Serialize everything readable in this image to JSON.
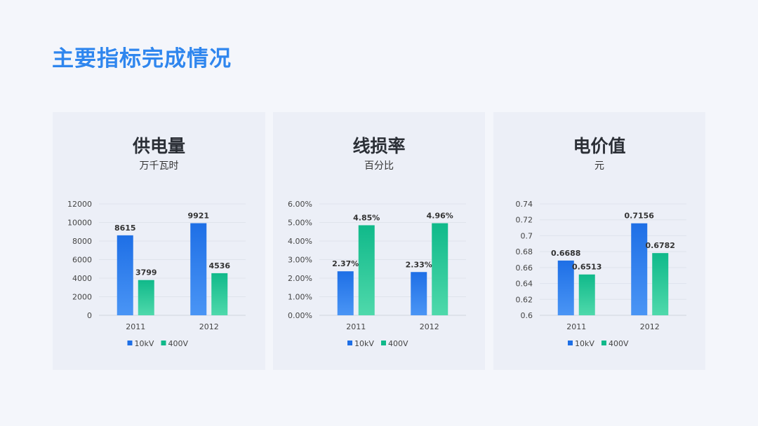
{
  "page_title": "主要指标完成情况",
  "colors": {
    "title": "#2f86ee",
    "series_10kV": [
      "#1e6fe6",
      "#4a95f5"
    ],
    "series_400V": [
      "#10b98a",
      "#4fd9ab"
    ],
    "card_bg": "#eceff7"
  },
  "chart_data": [
    {
      "type": "bar",
      "title": "供电量",
      "subtitle": "万千瓦时",
      "categories": [
        "2011",
        "2012"
      ],
      "series": [
        {
          "name": "10kV",
          "values": [
            8615,
            9921
          ],
          "labels": [
            "8615",
            "9921"
          ]
        },
        {
          "name": "400V",
          "values": [
            3799,
            4536
          ],
          "labels": [
            "3799",
            "4536"
          ]
        }
      ],
      "ylim": [
        0,
        12000
      ],
      "yticks": [
        0,
        2000,
        4000,
        6000,
        8000,
        10000,
        12000
      ],
      "ytick_labels": [
        "0",
        "2000",
        "4000",
        "6000",
        "8000",
        "10000",
        "12000"
      ],
      "grid": true,
      "legend": "bottom"
    },
    {
      "type": "bar",
      "title": "线损率",
      "subtitle": "百分比",
      "categories": [
        "2011",
        "2012"
      ],
      "series": [
        {
          "name": "10kV",
          "values": [
            2.37,
            2.33
          ],
          "labels": [
            "2.37%",
            "2.33%"
          ]
        },
        {
          "name": "400V",
          "values": [
            4.85,
            4.96
          ],
          "labels": [
            "4.85%",
            "4.96%"
          ]
        }
      ],
      "ylim": [
        0,
        6
      ],
      "yticks": [
        0,
        1,
        2,
        3,
        4,
        5,
        6
      ],
      "ytick_labels": [
        "0.00%",
        "1.00%",
        "2.00%",
        "3.00%",
        "4.00%",
        "5.00%",
        "6.00%"
      ],
      "grid": true,
      "legend": "bottom"
    },
    {
      "type": "bar",
      "title": "电价值",
      "subtitle": "元",
      "categories": [
        "2011",
        "2012"
      ],
      "series": [
        {
          "name": "10kV",
          "values": [
            0.6688,
            0.7156
          ],
          "labels": [
            "0.6688",
            "0.7156"
          ]
        },
        {
          "name": "400V",
          "values": [
            0.6513,
            0.6782
          ],
          "labels": [
            "0.6513",
            "0.6782"
          ]
        }
      ],
      "ylim": [
        0.6,
        0.74
      ],
      "yticks": [
        0.6,
        0.62,
        0.64,
        0.66,
        0.68,
        0.7,
        0.72,
        0.74
      ],
      "ytick_labels": [
        "0.6",
        "0.62",
        "0.64",
        "0.66",
        "0.68",
        "0.7",
        "0.72",
        "0.74"
      ],
      "grid": true,
      "legend": "bottom"
    }
  ]
}
